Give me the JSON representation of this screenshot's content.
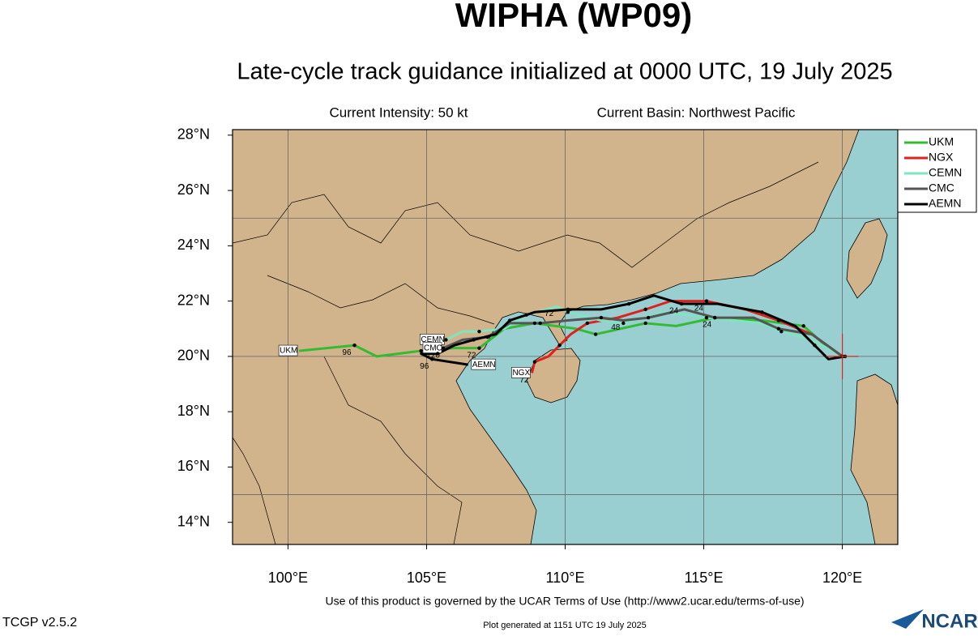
{
  "chart_data": {
    "type": "track",
    "title": "WIPHA (WP09)",
    "subtitle": "Late-cycle track guidance initialized at 0000 UTC, 19 July 2025",
    "intensity": "Current Intensity: 50 kt",
    "basin": "Current Basin: Northwest Pacific",
    "footer": "Use of this product is governed by the UCAR Terms of Use (http://www2.ucar.edu/terms-of-use)",
    "version": "TCGP v2.5.2",
    "generated": "Plot generated at 1151 UTC   19 July 2025",
    "logo": "NCAR",
    "xlim": [
      98,
      122
    ],
    "ylim": [
      13.2,
      28.2
    ],
    "xticks": [
      {
        "value": 100,
        "label": "100°E"
      },
      {
        "value": 105,
        "label": "105°E"
      },
      {
        "value": 110,
        "label": "110°E"
      },
      {
        "value": 115,
        "label": "115°E"
      },
      {
        "value": 120,
        "label": "120°E"
      }
    ],
    "yticks": [
      {
        "value": 14,
        "label": "14°N"
      },
      {
        "value": 16,
        "label": "16°N"
      },
      {
        "value": 18,
        "label": "18°N"
      },
      {
        "value": 20,
        "label": "20°N"
      },
      {
        "value": 22,
        "label": "22°N"
      },
      {
        "value": 24,
        "label": "24°N"
      },
      {
        "value": 26,
        "label": "26°N"
      },
      {
        "value": 28,
        "label": "28°N"
      }
    ],
    "ygrid": [
      15,
      20,
      25
    ],
    "storm_position": {
      "x": 120.0,
      "y": 20.0,
      "color": "#e0201c"
    },
    "legend": "outside-right",
    "series": [
      {
        "name": "UKM",
        "color": "#33bb33",
        "x": [
          120.0,
          119.5,
          118.6,
          117.1,
          115.4,
          114.0,
          112.9,
          112.0,
          111.1,
          110.4,
          108.9,
          107.8,
          106.9,
          106.0,
          104.8,
          103.2,
          102.4,
          100.4
        ],
        "values": [
          20.0,
          20.3,
          21.1,
          21.3,
          21.4,
          21.1,
          21.2,
          21.0,
          20.8,
          21.0,
          21.2,
          21.0,
          20.3,
          20.3,
          20.2,
          20.0,
          20.4,
          20.2
        ],
        "point_labels": [
          null,
          null,
          null,
          null,
          "24",
          null,
          null,
          null,
          null,
          null,
          null,
          null,
          "72",
          null,
          null,
          null,
          "96",
          null
        ]
      },
      {
        "name": "NGX",
        "color": "#e0201c",
        "x": [
          120.0,
          118.9,
          117.7,
          116.5,
          115.1,
          113.8,
          112.9,
          111.9,
          110.8,
          110.2,
          109.8,
          109.4,
          108.9,
          108.8
        ],
        "values": [
          20.0,
          20.8,
          21.3,
          21.7,
          22.0,
          22.0,
          21.7,
          21.4,
          21.2,
          20.8,
          20.4,
          20.0,
          19.8,
          19.4
        ],
        "point_labels": [
          null,
          null,
          null,
          null,
          "24",
          null,
          null,
          null,
          null,
          null,
          null,
          null,
          null,
          "72"
        ]
      },
      {
        "name": "CEMN",
        "color": "#7fe5c0",
        "x": [
          120.0,
          118.9,
          117.8,
          117.1,
          115.1,
          113.6,
          112.1,
          111.3,
          110.1,
          109.7,
          108.6,
          107.8,
          106.9,
          106.3,
          105.7
        ],
        "values": [
          20.0,
          20.6,
          20.9,
          21.2,
          21.4,
          21.6,
          21.2,
          21.3,
          21.6,
          21.8,
          21.5,
          21.0,
          20.9,
          20.9,
          20.6
        ],
        "point_labels": [
          null,
          null,
          null,
          null,
          null,
          null,
          null,
          null,
          null,
          "72",
          null,
          null,
          null,
          null,
          null
        ]
      },
      {
        "name": "CMC",
        "color": "#555555",
        "x": [
          120.0,
          118.9,
          117.7,
          116.8,
          115.4,
          114.3,
          113.0,
          112.1,
          111.3,
          110.1,
          109.1,
          108.0,
          107.2,
          106.3,
          105.6
        ],
        "values": [
          20.0,
          20.8,
          21.0,
          21.4,
          21.4,
          21.7,
          21.4,
          21.3,
          21.4,
          21.3,
          21.2,
          21.2,
          20.7,
          20.6,
          20.3
        ],
        "point_labels": [
          null,
          null,
          null,
          null,
          null,
          null,
          null,
          "48",
          null,
          null,
          null,
          null,
          null,
          null,
          "120"
        ]
      },
      {
        "name": "AEMN",
        "color": "#000000",
        "x": [
          120.1,
          119.5,
          119.0,
          118.3,
          117.1,
          115.5,
          114.2,
          113.2,
          112.3,
          111.3,
          110.1,
          108.9,
          108.0,
          107.5,
          106.7,
          106.0,
          105.4,
          104.8,
          105.2,
          106.5
        ],
        "values": [
          20.0,
          19.9,
          20.4,
          21.1,
          21.6,
          21.9,
          21.9,
          22.2,
          21.9,
          21.7,
          21.7,
          21.6,
          21.3,
          20.8,
          20.6,
          20.4,
          20.1,
          20.1,
          19.9,
          19.7
        ],
        "point_labels": [
          null,
          null,
          null,
          null,
          null,
          null,
          "24",
          null,
          null,
          null,
          null,
          null,
          null,
          null,
          null,
          null,
          null,
          null,
          "96",
          null
        ]
      }
    ]
  }
}
